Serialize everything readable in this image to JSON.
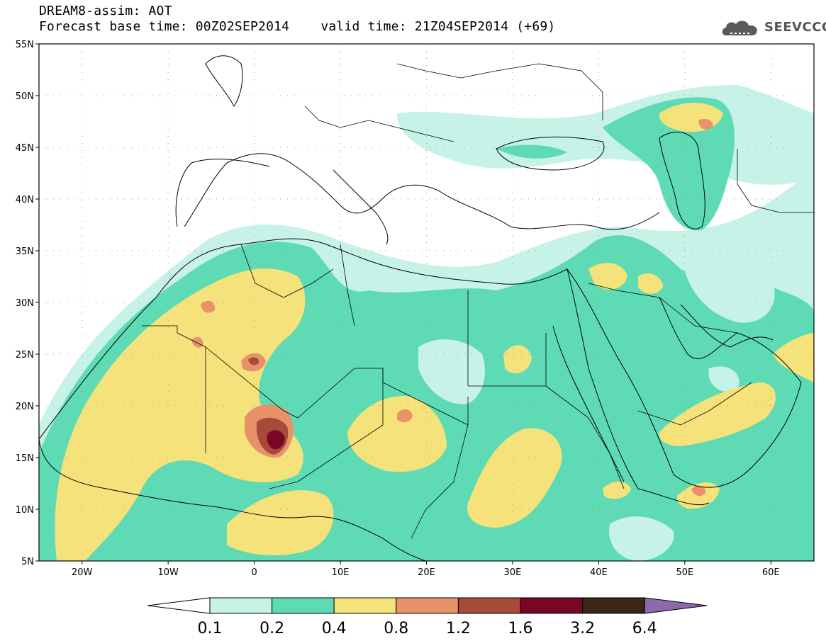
{
  "header": {
    "model": "DREAM8-assim: AOT",
    "base_time": "Forecast base time: 00Z02SEP2014",
    "valid_time": "valid time: 21Z04SEP2014 (+69)"
  },
  "logo": {
    "text": "SEEVCCC",
    "icon": "cloud-icon"
  },
  "map": {
    "projection": "lat-lon",
    "lon_range": [
      -25,
      65
    ],
    "lat_range": [
      5,
      55
    ],
    "lat_ticks": [
      {
        "value": 55,
        "label": "55N"
      },
      {
        "value": 50,
        "label": "50N"
      },
      {
        "value": 45,
        "label": "45N"
      },
      {
        "value": 40,
        "label": "40N"
      },
      {
        "value": 35,
        "label": "35N"
      },
      {
        "value": 30,
        "label": "30N"
      },
      {
        "value": 25,
        "label": "25N"
      },
      {
        "value": 20,
        "label": "20N"
      },
      {
        "value": 15,
        "label": "15N"
      },
      {
        "value": 10,
        "label": "10N"
      },
      {
        "value": 5,
        "label": "5N"
      }
    ],
    "lon_ticks": [
      {
        "value": -20,
        "label": "20W"
      },
      {
        "value": -10,
        "label": "10W"
      },
      {
        "value": 0,
        "label": "0"
      },
      {
        "value": 10,
        "label": "10E"
      },
      {
        "value": 20,
        "label": "20E"
      },
      {
        "value": 30,
        "label": "30E"
      },
      {
        "value": 40,
        "label": "40E"
      },
      {
        "value": 50,
        "label": "50E"
      },
      {
        "value": 60,
        "label": "60E"
      }
    ],
    "grid": "dotted"
  },
  "colorbar": {
    "labels": [
      "0.1",
      "0.2",
      "0.4",
      "0.8",
      "1.2",
      "1.6",
      "3.2",
      "6.4"
    ],
    "colors": [
      "#ffffff",
      "#c6f2e8",
      "#5edbb4",
      "#f6e27a",
      "#e8926a",
      "#a84a3a",
      "#7a0626",
      "#3a2616",
      "#8a6aaa"
    ]
  }
}
